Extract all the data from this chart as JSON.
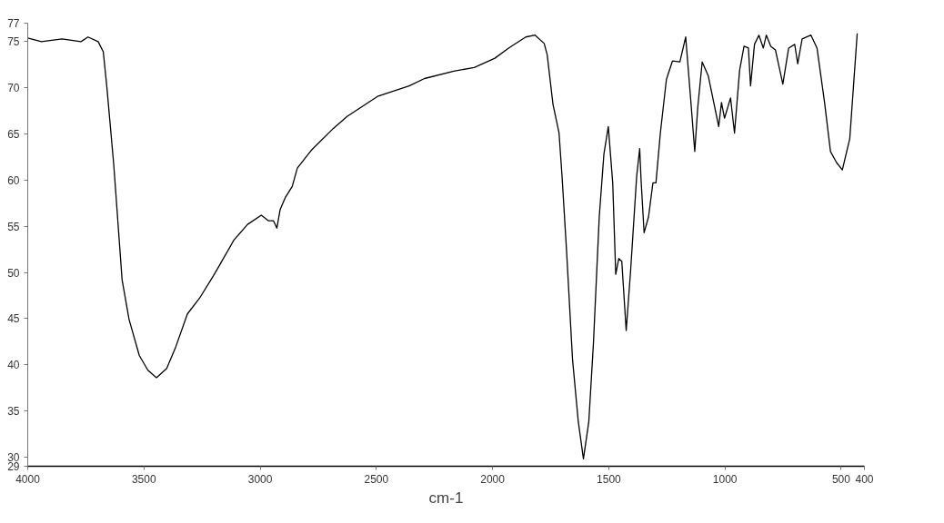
{
  "chart_data": {
    "type": "line",
    "xlabel": "cm-1",
    "xlim": [
      4000,
      400
    ],
    "ylim": [
      29,
      77
    ],
    "xticks": [
      4000,
      3500,
      3000,
      2500,
      2000,
      1500,
      1000,
      500,
      400
    ],
    "yticks": [
      29,
      30,
      35,
      40,
      45,
      50,
      55,
      60,
      65,
      70,
      75,
      77
    ],
    "grid": false,
    "marker": "none",
    "line_style": "solid",
    "series": [
      {
        "color": "#000000",
        "x": [
          4000,
          3941,
          3852,
          3771,
          3741,
          3697,
          3675,
          3660,
          3630,
          3594,
          3564,
          3520,
          3483,
          3446,
          3402,
          3365,
          3313,
          3261,
          3202,
          3172,
          3113,
          3054,
          2995,
          2965,
          2943,
          2928,
          2914,
          2892,
          2862,
          2840,
          2781,
          2685,
          2626,
          2492,
          2359,
          2293,
          2167,
          2079,
          1990,
          1931,
          1857,
          1817,
          1778,
          1765,
          1740,
          1714,
          1701,
          1682,
          1656,
          1631,
          1609,
          1586,
          1566,
          1541,
          1521,
          1502,
          1483,
          1470,
          1457,
          1444,
          1425,
          1406,
          1380,
          1367,
          1361,
          1348,
          1329,
          1310,
          1297,
          1278,
          1252,
          1226,
          1194,
          1169,
          1149,
          1130,
          1117,
          1098,
          1072,
          1027,
          1015,
          1002,
          976,
          959,
          937,
          918,
          899,
          890,
          873,
          854,
          835,
          822,
          803,
          783,
          751,
          726,
          700,
          687,
          668,
          630,
          604,
          572,
          546,
          520,
          495,
          463,
          431
        ],
        "values": [
          75.4,
          75.0,
          75.3,
          75.0,
          75.5,
          75.0,
          73.9,
          70.2,
          61.7,
          49.2,
          44.9,
          41.0,
          39.4,
          38.6,
          39.6,
          41.8,
          45.5,
          47.2,
          49.6,
          50.9,
          53.5,
          55.2,
          56.2,
          55.6,
          55.6,
          54.8,
          56.8,
          58.1,
          59.3,
          61.3,
          63.2,
          65.6,
          66.9,
          69.1,
          70.2,
          71.0,
          71.8,
          72.2,
          73.2,
          74.3,
          75.5,
          75.7,
          74.8,
          73.6,
          68.2,
          65.1,
          60.4,
          52.5,
          40.6,
          33.8,
          29.8,
          33.8,
          42.3,
          56.0,
          62.8,
          65.8,
          59.7,
          49.8,
          51.5,
          51.2,
          43.7,
          50.2,
          60.4,
          63.4,
          60.0,
          54.3,
          56.0,
          59.7,
          59.7,
          65.1,
          70.9,
          72.9,
          72.8,
          75.5,
          69.2,
          63.1,
          67.9,
          72.8,
          71.3,
          65.8,
          68.4,
          66.7,
          68.9,
          65.1,
          71.9,
          74.5,
          74.3,
          70.2,
          74.7,
          75.7,
          74.3,
          75.7,
          74.5,
          74.1,
          70.4,
          74.3,
          74.7,
          72.6,
          75.3,
          75.7,
          74.3,
          68.5,
          63.1,
          61.9,
          61.1,
          64.5,
          75.9
        ]
      }
    ]
  }
}
